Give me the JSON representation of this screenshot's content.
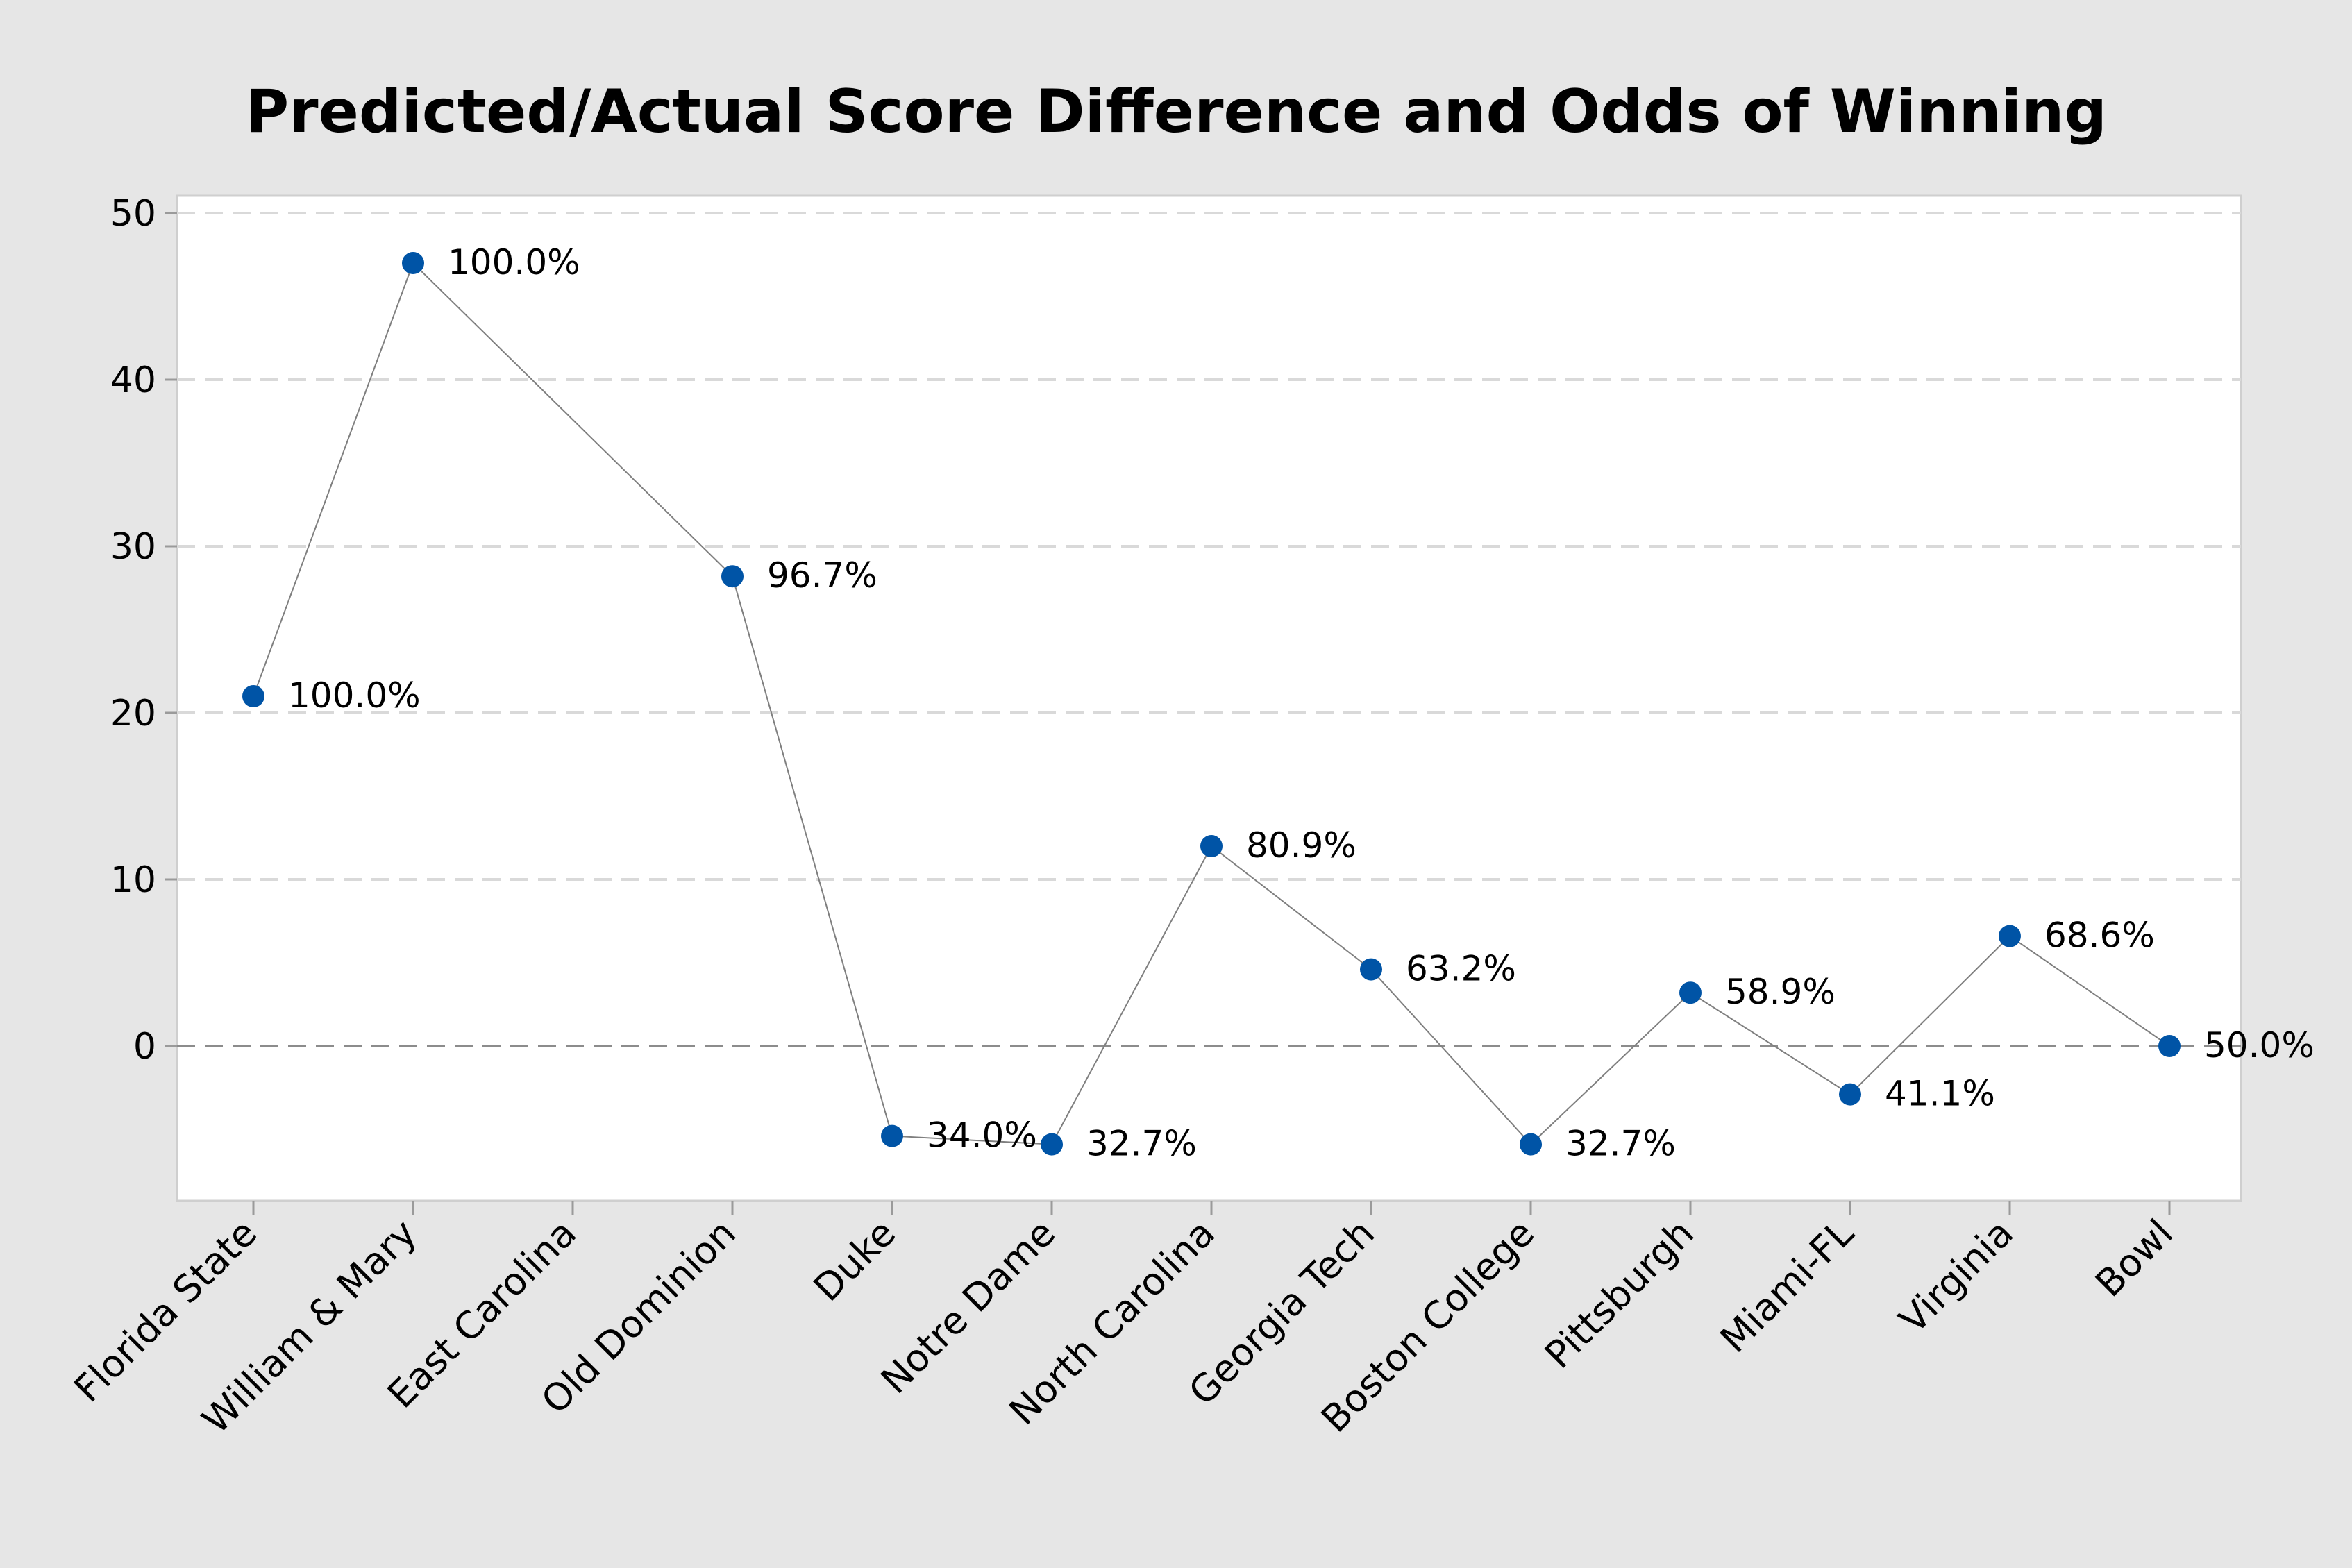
{
  "chart_data": {
    "type": "line",
    "title": "Predicted/Actual Score Difference and Odds of Winning",
    "xlabel": "",
    "ylabel": "",
    "categories": [
      "Florida State",
      "William & Mary",
      "East Carolina",
      "Old Dominion",
      "Duke",
      "Notre Dame",
      "North Carolina",
      "Georgia Tech",
      "Boston College",
      "Pittsburgh",
      "Miami-FL",
      "Virginia",
      "Bowl"
    ],
    "series": [
      {
        "values": [
          21,
          47,
          null,
          28.2,
          -5.4,
          -5.9,
          12,
          4.6,
          -5.9,
          3.2,
          -2.9,
          6.6,
          0
        ],
        "labels": [
          "100.0%",
          "100.0%",
          null,
          "96.7%",
          "34.0%",
          "32.7%",
          "80.9%",
          "63.2%",
          "32.7%",
          "58.9%",
          "41.1%",
          "68.6%",
          "50.0%"
        ]
      }
    ],
    "yticks": [
      0,
      10,
      20,
      30,
      40,
      50
    ],
    "ylim": [
      -9.2,
      51
    ],
    "grid": "horizontal dashed",
    "reference_line": 0,
    "colors": {
      "marker": "#0054a6",
      "line": "#7f7f7f",
      "grid": "#d9d9d9",
      "reference": "#8c8c8c",
      "background": "#e6e6e6",
      "plot_background": "#ffffff"
    }
  }
}
